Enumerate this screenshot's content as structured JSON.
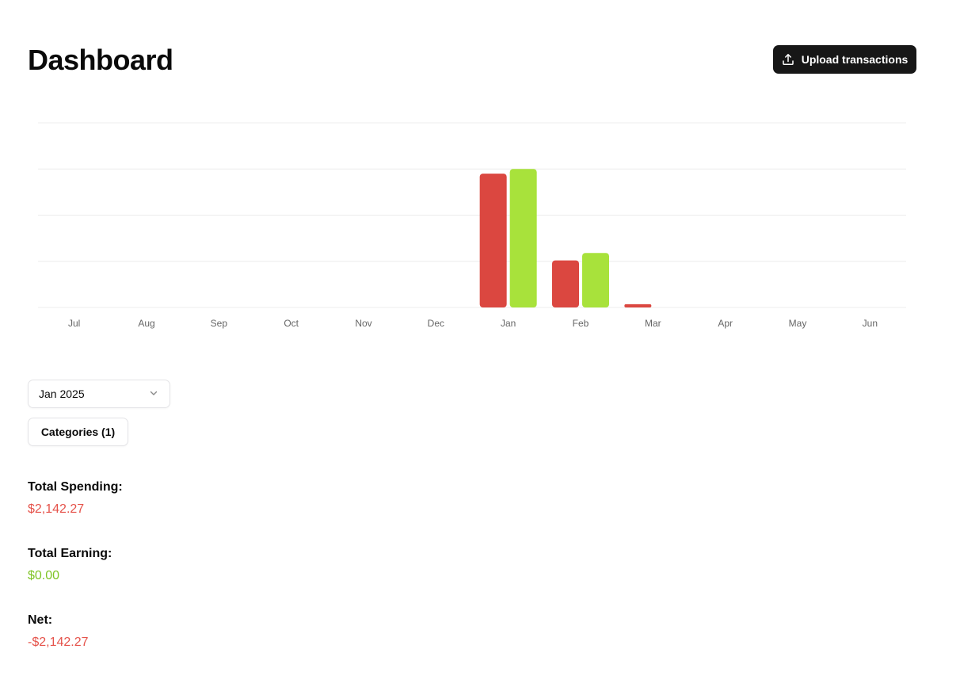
{
  "page": {
    "title": "Dashboard",
    "upload_label": "Upload transactions"
  },
  "colors": {
    "spending": "#db4740",
    "earning": "#a8e23b",
    "negative_text": "#e5534b",
    "positive_text": "#7ec424",
    "grid": "#ececec"
  },
  "chart_data": {
    "type": "bar",
    "categories": [
      "Jul",
      "Aug",
      "Sep",
      "Oct",
      "Nov",
      "Dec",
      "Jan",
      "Feb",
      "Mar",
      "Apr",
      "May",
      "Jun"
    ],
    "series": [
      {
        "color": "#db4740",
        "values": [
          0,
          0,
          0,
          0,
          0,
          0,
          2900,
          1020,
          70,
          0,
          0,
          0
        ]
      },
      {
        "color": "#a8e23b",
        "values": [
          0,
          0,
          0,
          0,
          0,
          0,
          3000,
          1180,
          0,
          0,
          0,
          0
        ]
      }
    ],
    "ylim": [
      0,
      4000
    ],
    "grid": true,
    "y_ticks_shown": false,
    "legend": "none"
  },
  "filters": {
    "month_select": {
      "value": "Jan 2025"
    },
    "categories_label": "Categories (1)"
  },
  "stats": {
    "spending": {
      "label": "Total Spending:",
      "value": "$2,142.27"
    },
    "earning": {
      "label": "Total Earning:",
      "value": "$0.00"
    },
    "net": {
      "label": "Net:",
      "value": "-$2,142.27"
    }
  },
  "icons": {
    "upload": "upload-icon",
    "dropdown": "chevron-down-icon"
  }
}
